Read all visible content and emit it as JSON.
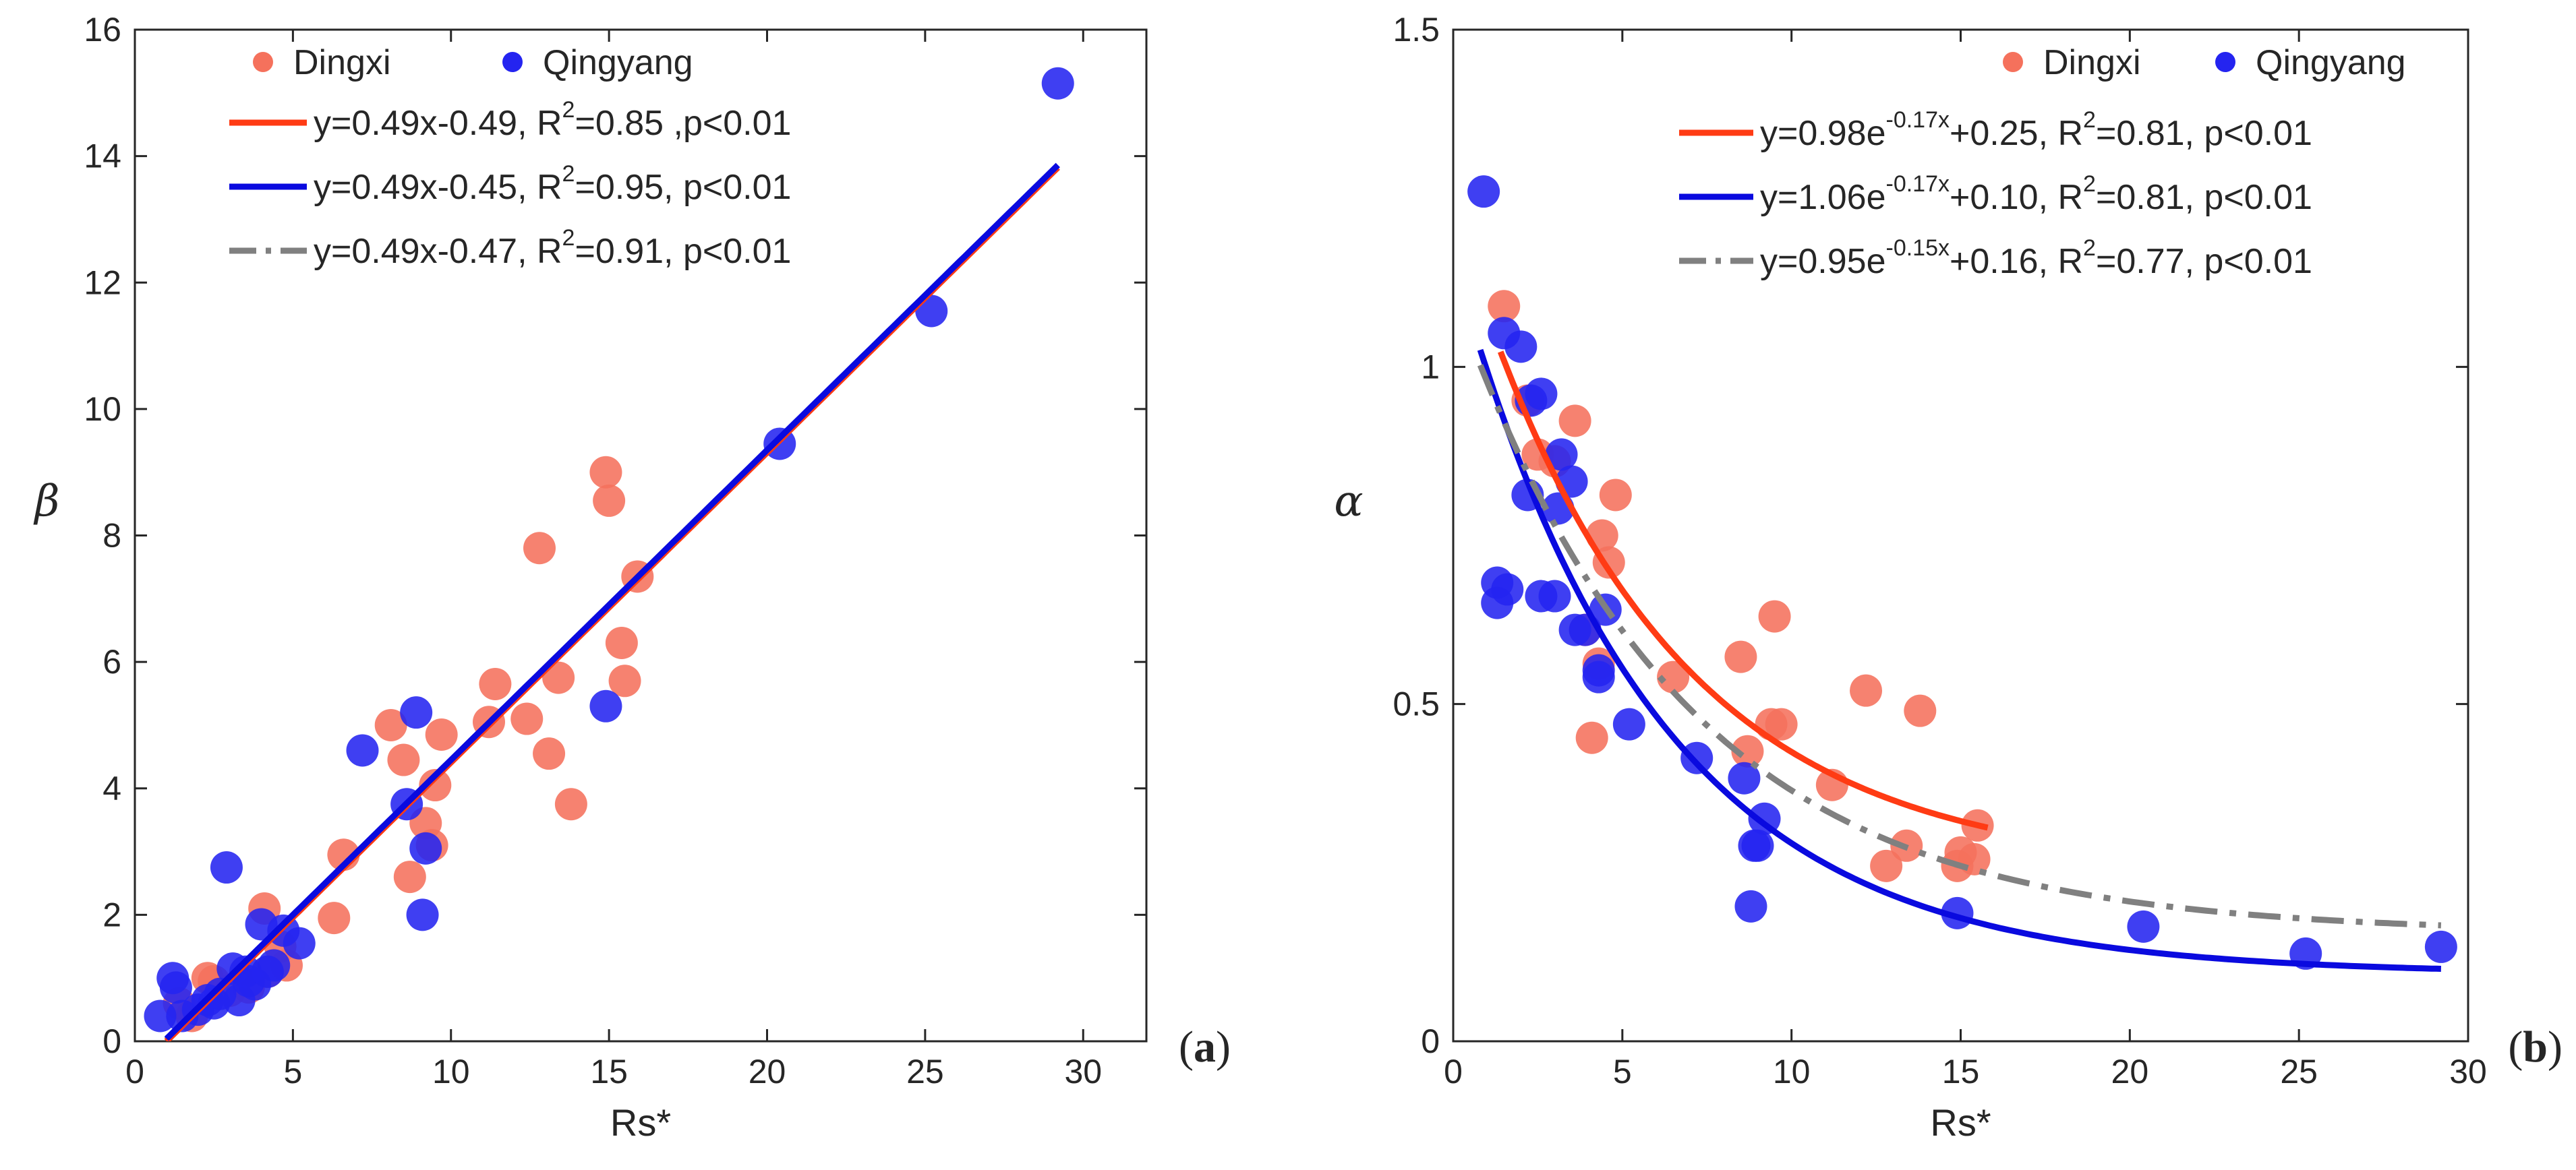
{
  "colors": {
    "dingxi": "#f5715c",
    "qingyang": "#2424f0",
    "fit_dingxi": "#ff3b14",
    "fit_qingyang": "#0a0adf",
    "fit_all": "#808080",
    "axis": "#262626"
  },
  "chart_data": [
    {
      "panel": "a",
      "type": "scatter",
      "xlabel": "Rs*",
      "ylabel": "β",
      "xlim": [
        0,
        32
      ],
      "ylim": [
        0,
        16
      ],
      "xticks": [
        0,
        5,
        10,
        15,
        20,
        25,
        30
      ],
      "yticks": [
        0,
        2,
        4,
        6,
        8,
        10,
        12,
        14,
        16
      ],
      "grid": false,
      "legend_position": "top-left",
      "tag": {
        "open": "(",
        "letter": "a",
        "close": ")"
      },
      "legend": {
        "series": [
          "Dingxi",
          "Qingyang"
        ],
        "fits": [
          {
            "color": "fit_dingxi",
            "style": "solid",
            "pre": "y=0.49x-0.49, R",
            "sup": "2",
            "post": "=0.85 ,p<0.01"
          },
          {
            "color": "fit_qingyang",
            "style": "solid",
            "pre": "y=0.49x-0.45, R",
            "sup": "2",
            "post": "=0.95, p<0.01"
          },
          {
            "color": "fit_all",
            "style": "dashdot",
            "pre": "y=0.49x-0.47, R",
            "sup": "2",
            "post": "=0.91, p<0.01"
          }
        ]
      },
      "fit_lines": [
        {
          "color": "fit_all",
          "style": "dashdot",
          "kind": "linear",
          "a": 0.49,
          "b": -0.47,
          "x_range": [
            1.0,
            29.2
          ]
        },
        {
          "color": "fit_dingxi",
          "style": "solid",
          "kind": "linear",
          "a": 0.49,
          "b": -0.49,
          "x_range": [
            1.0,
            29.2
          ]
        },
        {
          "color": "fit_qingyang",
          "style": "solid",
          "kind": "linear",
          "a": 0.49,
          "b": -0.45,
          "x_range": [
            1.0,
            29.2
          ]
        }
      ],
      "series": [
        {
          "name": "Dingxi",
          "color": "dingxi",
          "points": [
            [
              1.4,
              0.6
            ],
            [
              1.8,
              0.4
            ],
            [
              2.3,
              1.0
            ],
            [
              2.5,
              0.95
            ],
            [
              3.0,
              0.8
            ],
            [
              3.6,
              0.85
            ],
            [
              4.1,
              2.1
            ],
            [
              4.2,
              1.1
            ],
            [
              4.6,
              1.5
            ],
            [
              4.8,
              1.2
            ],
            [
              6.3,
              1.95
            ],
            [
              6.6,
              2.95
            ],
            [
              8.1,
              5.0
            ],
            [
              8.5,
              4.45
            ],
            [
              8.7,
              2.6
            ],
            [
              9.2,
              3.45
            ],
            [
              9.4,
              3.1
            ],
            [
              9.5,
              4.05
            ],
            [
              9.7,
              4.85
            ],
            [
              11.2,
              5.05
            ],
            [
              11.4,
              5.65
            ],
            [
              12.4,
              5.1
            ],
            [
              12.8,
              7.8
            ],
            [
              13.1,
              4.55
            ],
            [
              13.4,
              5.75
            ],
            [
              13.8,
              3.75
            ],
            [
              14.9,
              9.0
            ],
            [
              15.0,
              8.55
            ],
            [
              15.4,
              6.3
            ],
            [
              15.5,
              5.7
            ],
            [
              15.9,
              7.35
            ]
          ]
        },
        {
          "name": "Qingyang",
          "color": "qingyang",
          "points": [
            [
              0.8,
              0.4
            ],
            [
              1.2,
              1.0
            ],
            [
              1.3,
              0.85
            ],
            [
              1.5,
              0.4
            ],
            [
              2.0,
              0.5
            ],
            [
              2.3,
              0.65
            ],
            [
              2.5,
              0.6
            ],
            [
              2.7,
              0.75
            ],
            [
              2.9,
              2.75
            ],
            [
              3.1,
              1.15
            ],
            [
              3.3,
              0.65
            ],
            [
              3.5,
              1.1
            ],
            [
              3.6,
              0.95
            ],
            [
              3.8,
              0.9
            ],
            [
              4.0,
              1.85
            ],
            [
              4.2,
              1.1
            ],
            [
              4.4,
              1.2
            ],
            [
              4.7,
              1.75
            ],
            [
              5.2,
              1.55
            ],
            [
              7.2,
              4.6
            ],
            [
              8.6,
              3.75
            ],
            [
              8.9,
              5.2
            ],
            [
              9.1,
              2.0
            ],
            [
              9.2,
              3.05
            ],
            [
              14.9,
              5.3
            ],
            [
              20.4,
              9.45
            ],
            [
              25.2,
              11.55
            ],
            [
              29.2,
              15.15
            ]
          ]
        }
      ]
    },
    {
      "panel": "b",
      "type": "scatter",
      "xlabel": "Rs*",
      "ylabel": "α",
      "xlim": [
        0,
        30
      ],
      "ylim": [
        0,
        1.5
      ],
      "xticks": [
        0,
        5,
        10,
        15,
        20,
        25,
        30
      ],
      "yticks": [
        0,
        0.5,
        1,
        1.5
      ],
      "ytick_labels": [
        "0",
        "0.5",
        "1",
        "1.5"
      ],
      "grid": false,
      "legend_position": "top-right",
      "tag": {
        "open": "(",
        "letter": "b",
        "close": ")"
      },
      "legend": {
        "series": [
          "Dingxi",
          "Qingyang"
        ],
        "fits": [
          {
            "color": "fit_dingxi",
            "style": "solid",
            "pre": "y=0.98e",
            "sup": "-0.17x",
            "post": "+0.25, R",
            "sup2": "2",
            "post2": "=0.81, p<0.01"
          },
          {
            "color": "fit_qingyang",
            "style": "solid",
            "pre": "y=1.06e",
            "sup": "-0.17x",
            "post": "+0.10, R",
            "sup2": "2",
            "post2": "=0.81, p<0.01"
          },
          {
            "color": "fit_all",
            "style": "dashdot",
            "pre": "y=0.95e",
            "sup": "-0.15x",
            "post": "+0.16, R",
            "sup2": "2",
            "post2": "=0.77, p<0.01"
          }
        ]
      },
      "fit_lines": [
        {
          "color": "fit_dingxi",
          "style": "solid",
          "kind": "exp",
          "a": 0.98,
          "k": -0.17,
          "c": 0.25,
          "x_range": [
            1.4,
            15.8
          ]
        },
        {
          "color": "fit_qingyang",
          "style": "solid",
          "kind": "exp",
          "a": 1.06,
          "k": -0.17,
          "c": 0.1,
          "x_range": [
            0.8,
            29.2
          ]
        },
        {
          "color": "fit_all",
          "style": "dashdot",
          "kind": "exp",
          "a": 0.95,
          "k": -0.15,
          "c": 0.16,
          "x_range": [
            0.8,
            29.2
          ]
        }
      ],
      "series": [
        {
          "name": "Dingxi",
          "color": "dingxi",
          "points": [
            [
              1.5,
              1.09
            ],
            [
              2.2,
              0.95
            ],
            [
              2.5,
              0.87
            ],
            [
              3.0,
              0.86
            ],
            [
              3.6,
              0.92
            ],
            [
              3.9,
              0.61
            ],
            [
              4.1,
              0.45
            ],
            [
              4.3,
              0.56
            ],
            [
              4.4,
              0.75
            ],
            [
              4.6,
              0.71
            ],
            [
              4.8,
              0.81
            ],
            [
              6.5,
              0.54
            ],
            [
              8.5,
              0.57
            ],
            [
              8.7,
              0.43
            ],
            [
              9.4,
              0.47
            ],
            [
              9.5,
              0.63
            ],
            [
              9.7,
              0.47
            ],
            [
              11.2,
              0.38
            ],
            [
              12.2,
              0.52
            ],
            [
              12.8,
              0.26
            ],
            [
              13.4,
              0.29
            ],
            [
              13.8,
              0.49
            ],
            [
              14.9,
              0.26
            ],
            [
              15.0,
              0.28
            ],
            [
              15.4,
              0.27
            ],
            [
              15.5,
              0.32
            ]
          ]
        },
        {
          "name": "Qingyang",
          "color": "qingyang",
          "points": [
            [
              0.9,
              1.26
            ],
            [
              1.3,
              0.68
            ],
            [
              1.3,
              0.65
            ],
            [
              1.6,
              0.67
            ],
            [
              1.5,
              1.05
            ],
            [
              2.0,
              1.03
            ],
            [
              2.2,
              0.81
            ],
            [
              2.3,
              0.95
            ],
            [
              2.6,
              0.96
            ],
            [
              2.6,
              0.66
            ],
            [
              3.0,
              0.66
            ],
            [
              3.1,
              0.79
            ],
            [
              3.2,
              0.87
            ],
            [
              3.5,
              0.83
            ],
            [
              3.6,
              0.61
            ],
            [
              3.9,
              0.61
            ],
            [
              4.3,
              0.55
            ],
            [
              4.3,
              0.54
            ],
            [
              4.5,
              0.64
            ],
            [
              5.2,
              0.47
            ],
            [
              7.2,
              0.42
            ],
            [
              8.6,
              0.39
            ],
            [
              8.8,
              0.2
            ],
            [
              8.9,
              0.29
            ],
            [
              9.0,
              0.29
            ],
            [
              9.2,
              0.33
            ],
            [
              14.9,
              0.19
            ],
            [
              20.4,
              0.17
            ],
            [
              25.2,
              0.13
            ],
            [
              29.2,
              0.14
            ]
          ]
        }
      ]
    }
  ]
}
